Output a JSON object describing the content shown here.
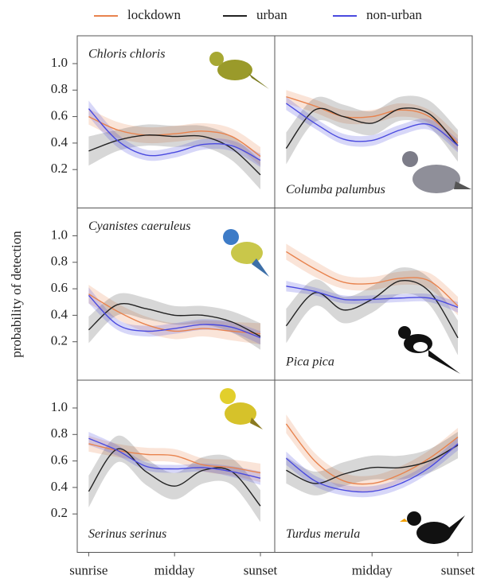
{
  "ylabel": "probability of detection",
  "legend": [
    {
      "name": "lockdown",
      "color": "#e8834e"
    },
    {
      "name": "urban",
      "color": "#222222"
    },
    {
      "name": "non-urban",
      "color": "#4a4adf"
    }
  ],
  "chart_data": [
    {
      "type": "line",
      "title": "Chloris chloris",
      "title_position": "top",
      "x": [
        0,
        1,
        2,
        3,
        4,
        5,
        6
      ],
      "xlim": [
        -0.4,
        6.5
      ],
      "ylim": [
        -0.09,
        1.21
      ],
      "yticks": [
        0.2,
        0.4,
        0.6,
        0.8,
        {
          "value": 1,
          "label": "1.0"
        }
      ],
      "series": [
        {
          "color": "#e8834e",
          "values": [
            0.6,
            0.5,
            0.46,
            0.47,
            0.49,
            0.45,
            0.3
          ],
          "ci": [
            0.06,
            0.06,
            0.06,
            0.06,
            0.06,
            0.06,
            0.07
          ]
        },
        {
          "color": "#222222",
          "values": [
            0.34,
            0.42,
            0.46,
            0.45,
            0.45,
            0.36,
            0.16
          ],
          "ci": [
            0.11,
            0.08,
            0.08,
            0.08,
            0.08,
            0.09,
            0.11
          ]
        },
        {
          "color": "#4a4adf",
          "values": [
            0.66,
            0.42,
            0.31,
            0.33,
            0.39,
            0.38,
            0.27
          ],
          "ci": [
            0.06,
            0.05,
            0.04,
            0.04,
            0.04,
            0.04,
            0.05
          ]
        }
      ]
    },
    {
      "type": "line",
      "title": "Columba palumbus",
      "title_position": "bottom",
      "x": [
        0,
        1,
        2,
        3,
        4,
        5,
        6
      ],
      "xlim": [
        -0.4,
        6.5
      ],
      "ylim": [
        -0.09,
        1.21
      ],
      "series": [
        {
          "color": "#e8834e",
          "values": [
            0.75,
            0.68,
            0.6,
            0.6,
            0.65,
            0.6,
            0.4
          ],
          "ci": [
            0.05,
            0.05,
            0.05,
            0.05,
            0.05,
            0.05,
            0.06
          ]
        },
        {
          "color": "#222222",
          "values": [
            0.36,
            0.65,
            0.6,
            0.55,
            0.66,
            0.62,
            0.38
          ],
          "ci": [
            0.12,
            0.09,
            0.09,
            0.09,
            0.09,
            0.1,
            0.12
          ]
        },
        {
          "color": "#4a4adf",
          "values": [
            0.7,
            0.55,
            0.43,
            0.42,
            0.5,
            0.54,
            0.38
          ],
          "ci": [
            0.05,
            0.04,
            0.04,
            0.04,
            0.04,
            0.04,
            0.05
          ]
        }
      ]
    },
    {
      "type": "line",
      "title": "Cyanistes caeruleus",
      "title_position": "top",
      "x": [
        0,
        1,
        2,
        3,
        4,
        5,
        6
      ],
      "xlim": [
        -0.4,
        6.5
      ],
      "ylim": [
        -0.09,
        1.21
      ],
      "yticks": [
        0.2,
        0.4,
        0.6,
        0.8,
        {
          "value": 1,
          "label": "1.0"
        }
      ],
      "series": [
        {
          "color": "#e8834e",
          "values": [
            0.56,
            0.43,
            0.33,
            0.28,
            0.3,
            0.28,
            0.26
          ],
          "ci": [
            0.07,
            0.06,
            0.06,
            0.06,
            0.06,
            0.07,
            0.08
          ]
        },
        {
          "color": "#222222",
          "values": [
            0.29,
            0.48,
            0.45,
            0.4,
            0.4,
            0.35,
            0.24
          ],
          "ci": [
            0.1,
            0.08,
            0.08,
            0.07,
            0.07,
            0.08,
            0.1
          ]
        },
        {
          "color": "#4a4adf",
          "values": [
            0.55,
            0.33,
            0.28,
            0.3,
            0.33,
            0.31,
            0.23
          ],
          "ci": [
            0.06,
            0.04,
            0.04,
            0.04,
            0.04,
            0.04,
            0.05
          ]
        }
      ]
    },
    {
      "type": "line",
      "title": "Pica pica",
      "title_position": "bottom",
      "x": [
        0,
        1,
        2,
        3,
        4,
        5,
        6
      ],
      "xlim": [
        -0.4,
        6.5
      ],
      "ylim": [
        -0.09,
        1.21
      ],
      "series": [
        {
          "color": "#e8834e",
          "values": [
            0.88,
            0.75,
            0.65,
            0.64,
            0.68,
            0.66,
            0.47
          ],
          "ci": [
            0.06,
            0.06,
            0.05,
            0.05,
            0.05,
            0.06,
            0.07
          ]
        },
        {
          "color": "#222222",
          "values": [
            0.32,
            0.57,
            0.44,
            0.52,
            0.66,
            0.58,
            0.23
          ],
          "ci": [
            0.13,
            0.1,
            0.1,
            0.1,
            0.1,
            0.1,
            0.13
          ]
        },
        {
          "color": "#4a4adf",
          "values": [
            0.62,
            0.58,
            0.52,
            0.52,
            0.53,
            0.53,
            0.46
          ],
          "ci": [
            0.04,
            0.03,
            0.03,
            0.03,
            0.03,
            0.03,
            0.04
          ]
        }
      ]
    },
    {
      "type": "line",
      "title": "Serinus serinus",
      "title_position": "bottom",
      "x": [
        0,
        1,
        2,
        3,
        4,
        5,
        6
      ],
      "xlim": [
        -0.4,
        6.5
      ],
      "ylim": [
        -0.09,
        1.21
      ],
      "yticks": [
        0.2,
        0.4,
        0.6,
        0.8,
        {
          "value": 1,
          "label": "1.0"
        }
      ],
      "xticks": [
        {
          "value": 0,
          "label": "sunrise"
        },
        {
          "value": 3,
          "label": "midday"
        },
        {
          "value": 6,
          "label": "sunset"
        }
      ],
      "series": [
        {
          "color": "#e8834e",
          "values": [
            0.73,
            0.68,
            0.65,
            0.64,
            0.57,
            0.55,
            0.51
          ],
          "ci": [
            0.06,
            0.05,
            0.05,
            0.05,
            0.05,
            0.06,
            0.07
          ]
        },
        {
          "color": "#222222",
          "values": [
            0.37,
            0.69,
            0.52,
            0.41,
            0.53,
            0.52,
            0.26
          ],
          "ci": [
            0.12,
            0.1,
            0.1,
            0.1,
            0.1,
            0.1,
            0.12
          ]
        },
        {
          "color": "#4a4adf",
          "values": [
            0.77,
            0.68,
            0.56,
            0.54,
            0.55,
            0.52,
            0.47
          ],
          "ci": [
            0.05,
            0.04,
            0.03,
            0.03,
            0.03,
            0.04,
            0.05
          ]
        }
      ]
    },
    {
      "type": "line",
      "title": "Turdus merula",
      "title_position": "bottom",
      "x": [
        0,
        1,
        2,
        3,
        4,
        5,
        6
      ],
      "xlim": [
        -0.4,
        6.5
      ],
      "ylim": [
        -0.09,
        1.21
      ],
      "xticks": [
        {
          "value": 3,
          "label": "midday"
        },
        {
          "value": 6,
          "label": "sunset"
        }
      ],
      "series": [
        {
          "color": "#e8834e",
          "values": [
            0.88,
            0.6,
            0.45,
            0.43,
            0.5,
            0.62,
            0.78
          ],
          "ci": [
            0.07,
            0.06,
            0.06,
            0.06,
            0.06,
            0.06,
            0.07
          ]
        },
        {
          "color": "#222222",
          "values": [
            0.53,
            0.43,
            0.5,
            0.55,
            0.55,
            0.6,
            0.72
          ],
          "ci": [
            0.1,
            0.09,
            0.09,
            0.09,
            0.09,
            0.09,
            0.1
          ]
        },
        {
          "color": "#4a4adf",
          "values": [
            0.62,
            0.45,
            0.38,
            0.37,
            0.43,
            0.55,
            0.73
          ],
          "ci": [
            0.05,
            0.04,
            0.04,
            0.04,
            0.04,
            0.04,
            0.05
          ]
        }
      ]
    }
  ]
}
